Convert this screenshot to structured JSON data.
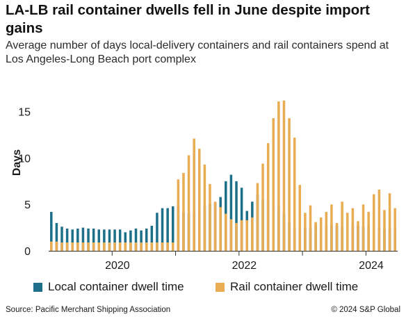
{
  "title": "LA-LB rail container dwells fell in June despite import gains",
  "subtitle": "Average number of days local-delivery containers and rail containers spend at Los Angeles-Long Beach port complex",
  "source": "Source: Pacific Merchant Shipping Association",
  "copyright": "© 2024 S&P Global",
  "colors": {
    "local": "#1d6f8a",
    "rail": "#e9ac52",
    "axis": "#333333",
    "text": "#1a1a1a"
  },
  "chart_data": {
    "type": "bar",
    "ylabel": "Days",
    "xlabel": "",
    "ylim": [
      0,
      17
    ],
    "yticks": [
      0,
      5,
      10,
      15
    ],
    "xticks": [
      {
        "label": "2020",
        "year": 2020
      },
      {
        "label": "2022",
        "year": 2022
      },
      {
        "label": "2024",
        "year": 2024
      }
    ],
    "grid": false,
    "legend_position": "bottom",
    "start_month": "2019-01",
    "months": [
      "2019-01",
      "2019-02",
      "2019-03",
      "2019-04",
      "2019-05",
      "2019-06",
      "2019-07",
      "2019-08",
      "2019-09",
      "2019-10",
      "2019-11",
      "2019-12",
      "2020-01",
      "2020-02",
      "2020-03",
      "2020-04",
      "2020-05",
      "2020-06",
      "2020-07",
      "2020-08",
      "2020-09",
      "2020-10",
      "2020-11",
      "2020-12",
      "2021-01",
      "2021-02",
      "2021-03",
      "2021-04",
      "2021-05",
      "2021-06",
      "2021-07",
      "2021-08",
      "2021-09",
      "2021-10",
      "2021-11",
      "2021-12",
      "2022-01",
      "2022-02",
      "2022-03",
      "2022-04",
      "2022-05",
      "2022-06",
      "2022-07",
      "2022-08",
      "2022-09",
      "2022-10",
      "2022-11",
      "2022-12",
      "2023-01",
      "2023-02",
      "2023-03",
      "2023-04",
      "2023-05",
      "2023-06",
      "2023-07",
      "2023-08",
      "2023-09",
      "2023-10",
      "2023-11",
      "2023-12",
      "2024-01",
      "2024-02",
      "2024-03",
      "2024-04",
      "2024-05",
      "2024-06"
    ],
    "series": [
      {
        "name": "Local container dwell time",
        "values": [
          4.2,
          3.0,
          2.6,
          2.4,
          2.3,
          2.4,
          2.5,
          2.4,
          2.4,
          2.3,
          2.3,
          2.3,
          2.3,
          2.3,
          2.0,
          2.2,
          2.4,
          2.2,
          2.4,
          2.7,
          4.1,
          4.6,
          4.6,
          4.8,
          5.0,
          4.1,
          4.0,
          4.0,
          4.1,
          4.8,
          5.1,
          5.2,
          5.8,
          7.5,
          8.2,
          7.5,
          6.8,
          4.3,
          5.3,
          6.1,
          5.5,
          5.6,
          5.4,
          4.8,
          4.0,
          3.0,
          2.5,
          2.6,
          2.5,
          2.4,
          2.8,
          2.6,
          2.7,
          2.8,
          2.7,
          2.6,
          2.7,
          2.8,
          2.7,
          2.6,
          2.7,
          2.7,
          2.5,
          2.4,
          2.4,
          2.5
        ]
      },
      {
        "name": "Rail container dwell time",
        "values": [
          1.0,
          1.0,
          0.9,
          0.9,
          0.9,
          0.9,
          0.9,
          0.9,
          0.9,
          0.9,
          0.9,
          0.9,
          0.9,
          0.9,
          0.9,
          0.9,
          0.9,
          0.9,
          0.9,
          0.9,
          0.9,
          0.9,
          0.9,
          0.9,
          7.7,
          8.4,
          10.3,
          12.1,
          11.0,
          9.3,
          7.2,
          5.3,
          4.7,
          4.0,
          3.4,
          3.0,
          3.3,
          3.3,
          3.6,
          7.3,
          9.4,
          11.6,
          14.3,
          16.1,
          16.2,
          14.3,
          12.2,
          7.1,
          4.1,
          4.9,
          3.1,
          3.6,
          4.2,
          5.0,
          3.0,
          5.3,
          4.1,
          4.6,
          3.2,
          5.0,
          4.2,
          6.1,
          6.6,
          4.4,
          6.2,
          4.6
        ]
      }
    ]
  }
}
